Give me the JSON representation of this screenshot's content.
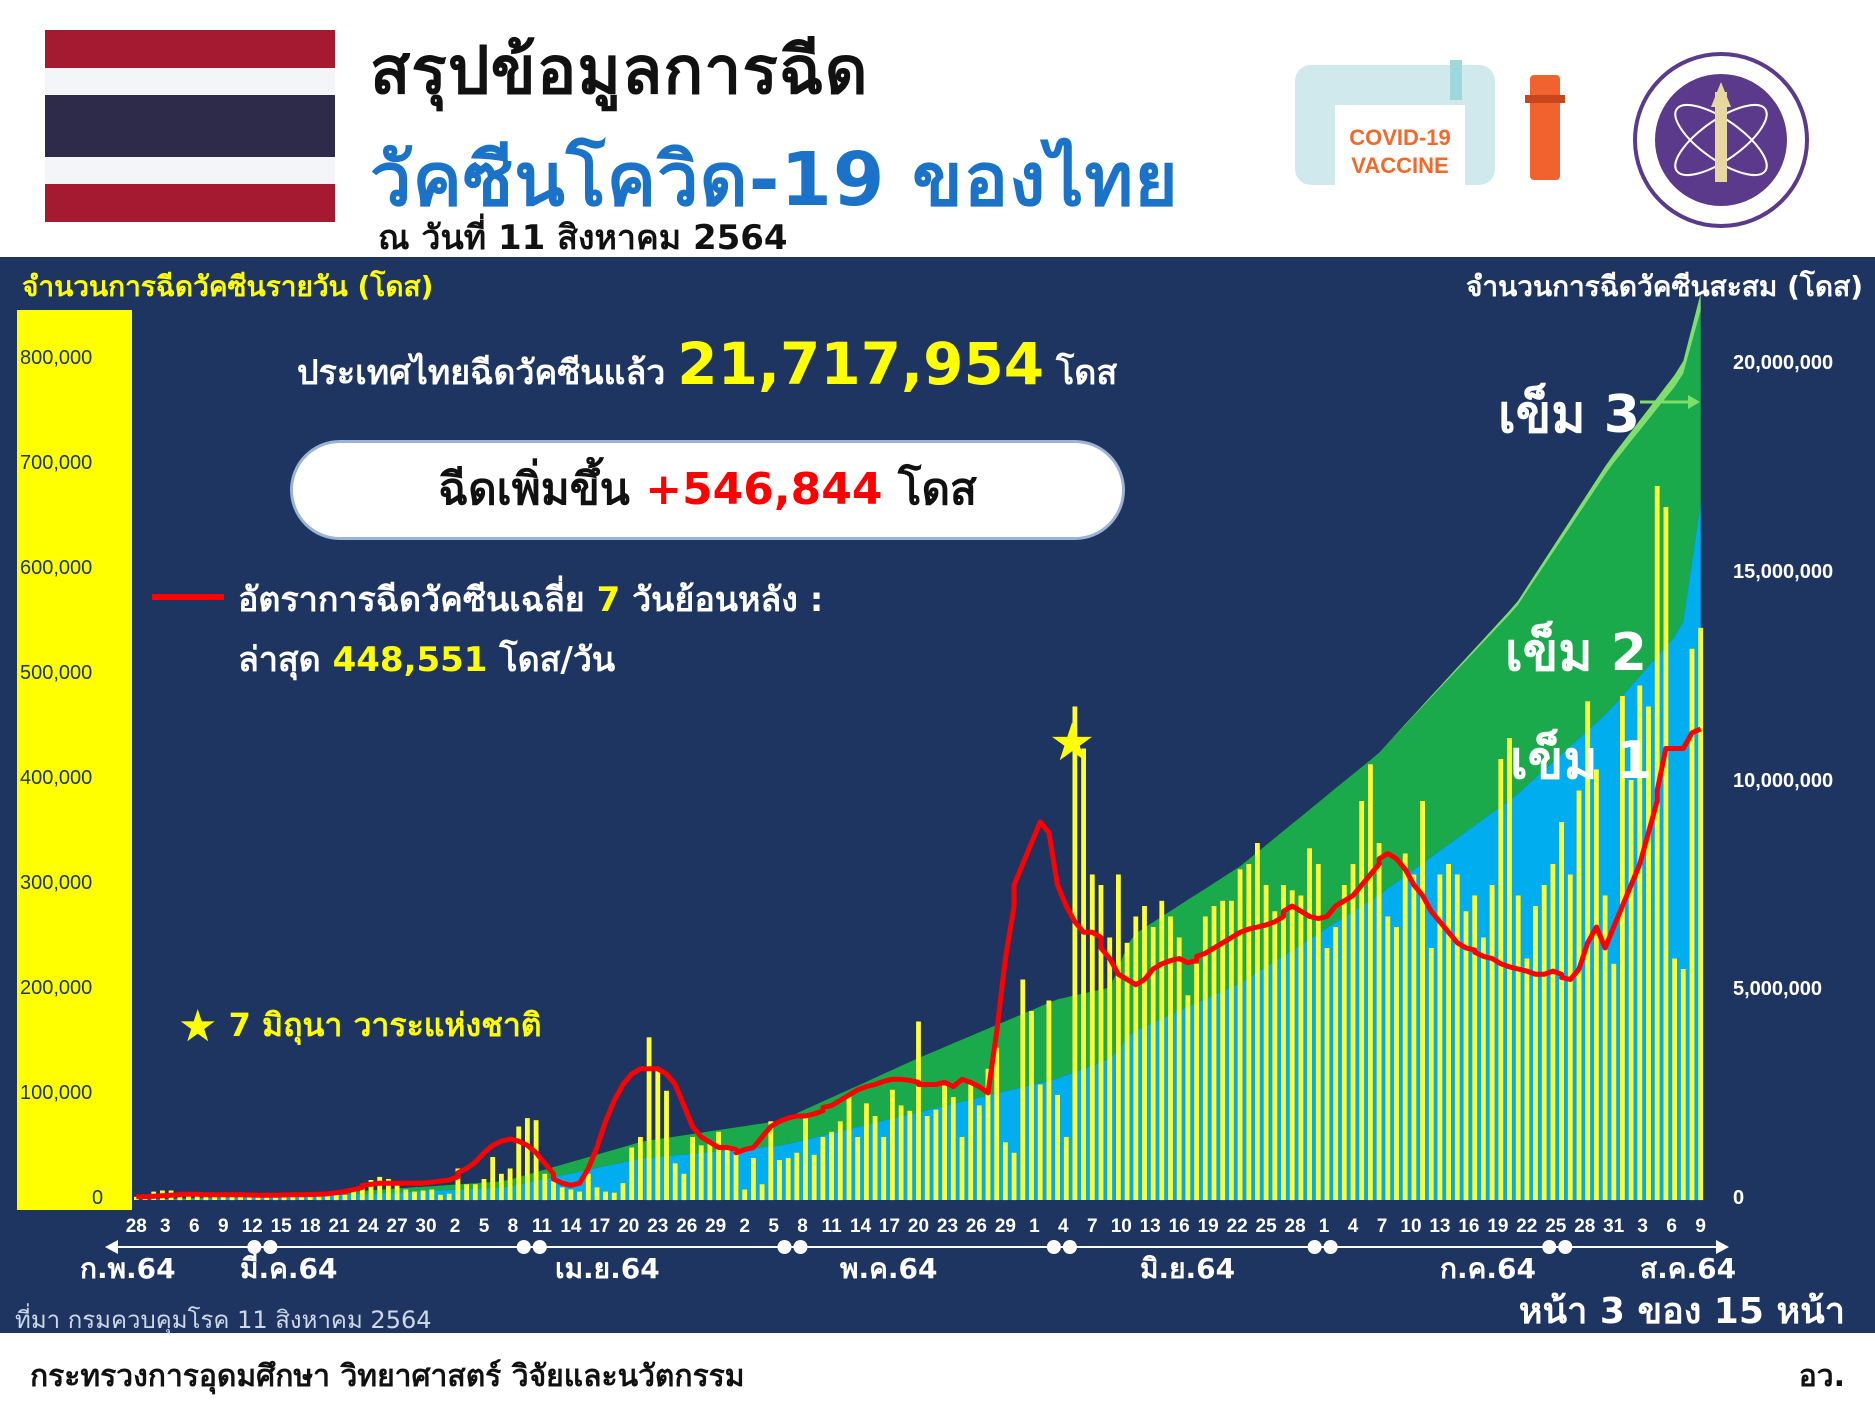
{
  "header": {
    "title_line1": "สรุปข้อมูลการฉีด",
    "title_line2": "วัคซีนโควิด-19 ของไทย",
    "as_of": "ณ วันที่ 11 สิงหาคม 2564",
    "vaccine_text_line1": "COVID-19",
    "vaccine_text_line2": "VACCINE",
    "flag_colors": [
      "#a51931",
      "#f4f5f8",
      "#2d2a4a",
      "#f4f5f8",
      "#a51931"
    ],
    "seal_color": "#5b3a8c"
  },
  "panel": {
    "left_axis_title": "จำนวนการฉีดวัคซีนรายวัน (โดส)",
    "right_axis_title": "จำนวนการฉีดวัคซีนสะสม (โดส)",
    "total_prefix": "ประเทศไทยฉีดวัคซีนแล้ว",
    "total_value": "21,717,954",
    "total_suffix": "โดส",
    "increase_prefix": "ฉีดเพิ่มขึ้น",
    "increase_value": "+546,844",
    "increase_suffix": "โดส",
    "avg_label_part1": "อัตราการฉีดวัคซีนเฉลี่ย",
    "avg_label_days": "7",
    "avg_label_part2": "วันย้อนหลัง :",
    "latest_prefix": "ล่าสุด",
    "latest_value": "448,551",
    "latest_suffix": "โดส/วัน",
    "star_note": "7 มิถุนา วาระแห่งชาติ",
    "dose3_label": "เข็ม 3",
    "dose2_label": "เข็ม 2",
    "dose1_label": "เข็ม 1",
    "source": "ที่มา กรมควบคุมโรค 11 สิงหาคม 2564",
    "page_info": "หน้า 3 ของ 15 หน้า",
    "colors": {
      "background": "#1f3561",
      "daily_bar": "#ffff33",
      "dose1_area": "#00aeef",
      "dose2_area": "#1aaa4b",
      "dose3_area": "#7ee06b",
      "avg_line": "#ff0000",
      "left_axis_band": "#ffff00"
    }
  },
  "footer": {
    "ministry": "กระทรวงการอุดมศึกษา วิทยาศาสตร์ วิจัยและนวัตกรรม",
    "abbr": "อว."
  },
  "chart_data": {
    "type": "bar",
    "x_tick_labels": [
      "28",
      "3",
      "6",
      "9",
      "12",
      "15",
      "18",
      "21",
      "24",
      "27",
      "30",
      "2",
      "5",
      "8",
      "11",
      "14",
      "17",
      "20",
      "23",
      "26",
      "29",
      "2",
      "5",
      "8",
      "11",
      "14",
      "17",
      "20",
      "23",
      "26",
      "29",
      "1",
      "4",
      "7",
      "10",
      "13",
      "16",
      "19",
      "22",
      "25",
      "28",
      "1",
      "4",
      "7",
      "10",
      "13",
      "16",
      "19",
      "22",
      "25",
      "28",
      "31",
      "3",
      "6",
      "9"
    ],
    "x_tick_day_index": [
      0,
      3,
      6,
      9,
      12,
      15,
      18,
      21,
      24,
      27,
      30,
      33,
      36,
      39,
      42,
      45,
      48,
      51,
      54,
      57,
      60,
      63,
      66,
      69,
      72,
      75,
      78,
      81,
      84,
      87,
      90,
      93,
      96,
      99,
      102,
      105,
      108,
      111,
      114,
      117,
      120,
      123,
      126,
      129,
      132,
      135,
      138,
      141,
      144,
      147,
      150,
      153,
      156,
      159,
      162
    ],
    "months": [
      {
        "label": "ก.พ.64",
        "day_index": 0
      },
      {
        "label": "มี.ค.64",
        "day_index": 15
      },
      {
        "label": "เม.ย.64",
        "day_index": 46
      },
      {
        "label": "พ.ค.64",
        "day_index": 76
      },
      {
        "label": "มิ.ย.64",
        "day_index": 107
      },
      {
        "label": "ก.ค.64",
        "day_index": 137
      },
      {
        "label": "ส.ค.64",
        "day_index": 164
      }
    ],
    "left_axis": {
      "ylim": [
        0,
        800000
      ],
      "ticks": [
        "0",
        "100,000",
        "200,000",
        "300,000",
        "400,000",
        "500,000",
        "600,000",
        "700,000",
        "800,000"
      ]
    },
    "right_axis": {
      "ylim": [
        0,
        20000000
      ],
      "ticks": [
        "0",
        "5,000,000",
        "10,000,000",
        "15,000,000",
        "20,000,000"
      ]
    },
    "daily_doses": [
      3000,
      2000,
      8000,
      9000,
      9000,
      5000,
      7000,
      6000,
      5000,
      4000,
      6000,
      5000,
      4000,
      4000,
      3000,
      4000,
      5000,
      5000,
      5000,
      6000,
      6000,
      5000,
      7000,
      5000,
      5000,
      9000,
      15000,
      19000,
      22000,
      20000,
      15000,
      10000,
      8000,
      9000,
      10000,
      5000,
      6000,
      30000,
      15000,
      15000,
      20000,
      41000,
      25000,
      30000,
      70000,
      78000,
      76000,
      25000,
      18000,
      12000,
      10000,
      8000,
      25000,
      12000,
      8000,
      7000,
      16000,
      50000,
      60000,
      155000,
      125000,
      104000,
      35000,
      25000,
      60000,
      52000,
      55000,
      65000,
      52000,
      48000,
      10000,
      40000,
      15000,
      75000,
      38000,
      40000,
      45000,
      80000,
      43000,
      60000,
      65000,
      75000,
      100000,
      60000,
      92000,
      80000,
      60000,
      105000,
      90000,
      85000,
      170000,
      80000,
      86000,
      112000,
      98000,
      60000,
      113000,
      90000,
      125000,
      145000,
      55000,
      45000,
      210000,
      180000,
      110000,
      190000,
      100000,
      60000,
      470000,
      430000,
      310000,
      300000,
      250000,
      310000,
      245000,
      270000,
      280000,
      260000,
      285000,
      270000,
      250000,
      195000,
      225000,
      270000,
      280000,
      285000,
      285000,
      315000,
      320000,
      340000,
      300000,
      275000,
      300000,
      295000,
      290000,
      335000,
      320000,
      240000,
      260000,
      300000,
      320000,
      380000,
      415000,
      340000,
      270000,
      260000,
      330000,
      310000,
      380000,
      240000,
      310000,
      320000,
      310000,
      275000,
      290000,
      250000,
      300000,
      420000,
      440000,
      290000,
      230000,
      280000,
      300000,
      320000,
      360000,
      310000,
      390000,
      475000,
      410000,
      290000,
      225000,
      480000,
      400000,
      490000,
      470000,
      680000,
      660000,
      230000,
      220000,
      525000,
      545000
    ],
    "avg_7day": [
      3000,
      3000,
      3500,
      4000,
      4500,
      5000,
      5500,
      5500,
      5500,
      5000,
      5000,
      5000,
      5000,
      5000,
      4800,
      4600,
      4500,
      4500,
      4500,
      4800,
      5000,
      5000,
      5200,
      5500,
      5800,
      7000,
      8000,
      10000,
      12000,
      14000,
      15000,
      16000,
      16000,
      16000,
      16000,
      16000,
      16000,
      17000,
      18000,
      19000,
      22000,
      26000,
      30000,
      36000,
      45000,
      52000,
      56000,
      58000,
      56000,
      52000,
      45000,
      35000,
      25000,
      20000,
      16000,
      14000,
      16000,
      30000,
      50000,
      75000,
      95000,
      110000,
      120000,
      125000,
      125000,
      125000,
      125000,
      120000,
      110000,
      90000,
      70000,
      60000,
      55000,
      50000,
      50000,
      48000,
      45000,
      48000,
      50000,
      60000,
      70000,
      75000,
      78000,
      80000,
      80000,
      82000,
      85000,
      88000,
      90000,
      95000,
      100000,
      105000,
      108000,
      110000,
      113000,
      115000,
      115000,
      114000,
      112000,
      110000,
      110000,
      110000,
      112000,
      108000,
      115000,
      112000,
      108000,
      102000,
      160000,
      230000,
      280000,
      300000,
      320000,
      340000,
      360000,
      350000,
      300000,
      280000,
      265000,
      255000,
      255000,
      250000,
      240000,
      230000,
      215000,
      210000,
      205000,
      210000,
      220000,
      225000,
      228000,
      230000,
      226000,
      228000,
      232000,
      235000,
      240000,
      245000,
      250000,
      255000,
      258000,
      260000,
      262000,
      265000,
      270000,
      275000,
      280000,
      275000,
      270000,
      268000,
      270000,
      280000,
      285000,
      290000,
      300000,
      310000,
      320000,
      325000,
      330000,
      325000,
      315000,
      300000,
      290000,
      275000,
      265000,
      255000,
      245000,
      240000,
      238000,
      236000,
      232000,
      230000,
      225000,
      222000,
      220000,
      218000,
      215000,
      215000,
      218000,
      215000,
      212000,
      210000,
      220000,
      245000,
      260000,
      240000,
      260000,
      280000,
      300000,
      320000,
      350000,
      380000,
      390000,
      430000,
      430000,
      430000,
      445000,
      448551
    ],
    "cumulative_dose1": [
      0,
      10000,
      20000,
      30000,
      40000,
      50000,
      60000,
      70000,
      75000,
      80000,
      85000,
      90000,
      95000,
      100000,
      105000,
      110000,
      115000,
      120000,
      125000,
      130000,
      135000,
      140000,
      145000,
      150000,
      155000,
      160000,
      175000,
      190000,
      210000,
      230000,
      245000,
      255000,
      265000,
      275000,
      285000,
      290000,
      295000,
      325000,
      340000,
      355000,
      375000,
      416000,
      441000,
      471000,
      541000,
      619000,
      695000,
      720000,
      738000,
      750000,
      760000,
      768000,
      793000,
      805000,
      813000,
      820000,
      836000,
      886000,
      946000,
      1100000,
      1225000,
      1329000,
      1360000,
      1380000,
      1430000,
      1470000,
      1510000,
      1560000,
      1600000,
      1630000,
      1638000,
      1665000,
      1675000,
      1730000,
      1758000,
      1785000,
      1815000,
      1870000,
      1900000,
      1940000,
      1985000,
      2035000,
      2100000,
      2140000,
      2200000,
      2250000,
      2290000,
      2360000,
      2420000,
      2475000,
      2580000,
      2630000,
      2680000,
      2750000,
      2810000,
      2845000,
      2910000,
      2960000,
      3030000,
      3110000,
      3140000,
      3165000,
      3280000,
      3380000,
      3440000,
      3545000,
      3600000,
      3630000,
      3900000,
      4130000,
      4300000,
      4460000,
      4590000,
      4750000,
      4870000,
      5000000,
      5130000,
      5250000,
      5380000,
      5500000,
      5610000,
      5700000,
      5800000,
      5920000,
      6040000,
      6160000,
      6280000,
      6410000,
      6540000,
      6680000,
      6800000,
      6910000,
      7030000,
      7150000,
      7260000,
      7390000,
      7520000,
      7610000,
      7710000,
      7820000,
      7940000,
      8090000,
      8250000,
      8380000,
      8480000,
      8580000,
      8700000,
      8820000,
      8960000,
      9050000,
      9170000,
      9290000,
      9400000,
      9500000,
      9600000,
      9690000,
      9800000,
      9960000,
      10120000,
      10220000,
      10300000,
      10400000,
      10510000,
      10620000,
      10750000,
      10860000,
      11000000,
      11170000,
      11320000,
      11420000,
      11500000,
      11660000,
      11800000,
      11970000,
      12140000,
      12380000,
      12620000,
      12700000,
      12780000,
      12950000,
      13100000,
      13300000,
      13500000,
      13700000,
      13900000,
      14100000,
      14300000,
      14500000,
      14700000,
      14900000,
      15100000,
      15400000,
      15700000,
      15950000,
      16200000,
      16450000,
      16700000
    ],
    "cumulative_dose2": [
      0,
      0,
      0,
      0,
      0,
      0,
      0,
      0,
      0,
      0,
      0,
      0,
      0,
      0,
      0,
      0,
      0,
      0,
      0,
      0,
      0,
      0,
      0,
      0,
      0,
      0,
      0,
      0,
      0,
      0,
      0,
      0,
      0,
      0,
      0,
      0,
      0,
      0,
      0,
      0,
      0,
      0,
      0,
      0,
      0,
      0,
      0,
      0,
      0,
      0,
      0,
      0,
      0,
      0,
      0,
      0,
      0,
      0,
      0,
      0,
      0,
      0,
      0,
      0,
      0,
      0,
      0,
      0,
      0,
      0,
      0,
      0,
      0,
      0,
      0,
      0,
      0,
      0,
      0,
      0,
      0,
      0,
      0,
      0,
      0,
      0,
      0,
      0,
      0,
      0,
      0,
      0,
      0,
      0,
      0,
      0,
      0,
      0,
      0,
      0,
      0,
      0,
      0,
      0,
      0,
      0,
      0,
      0,
      0,
      0,
      0,
      0,
      0,
      0,
      0,
      0,
      0,
      0,
      0,
      0,
      0,
      0,
      0,
      0,
      0,
      0,
      0,
      0,
      0,
      0,
      0,
      0,
      0,
      0,
      0,
      0,
      0,
      0,
      0,
      0,
      0,
      0,
      0,
      0,
      0,
      0,
      0,
      0,
      0,
      0,
      0,
      0,
      0,
      0,
      0,
      0,
      0,
      0,
      0,
      0,
      0,
      0,
      0,
      0,
      0,
      0,
      0,
      0,
      0,
      0,
      0,
      0,
      0,
      0,
      0,
      0,
      0,
      0,
      0,
      0,
      0,
      0,
      0,
      0,
      0,
      0,
      0,
      0,
      0,
      0,
      0,
      0,
      0,
      0,
      0,
      0,
      0,
      0,
      0,
      0,
      0
    ],
    "stacked_cumulative_anchors": {
      "description_unused": "",
      "day_index": [
        0,
        20,
        40,
        55,
        70,
        85,
        100,
        106,
        108,
        120,
        135,
        150,
        160,
        168,
        170
      ],
      "dose1_top": [
        0,
        100000,
        300000,
        1000000,
        1300000,
        2100000,
        2900000,
        3400000,
        4000000,
        5200000,
        7300000,
        9700000,
        11700000,
        13700000,
        16700000
      ],
      "dose2_top": [
        0,
        150000,
        450000,
        1400000,
        1900000,
        3400000,
        4800000,
        5100000,
        6300000,
        8000000,
        10700000,
        14200000,
        17500000,
        19700000,
        21300000
      ],
      "dose3_top": [
        0,
        150000,
        450000,
        1400000,
        1900000,
        3400000,
        4800000,
        5100000,
        6300000,
        8000000,
        10700000,
        14300000,
        17700000,
        20000000,
        21717954
      ]
    }
  }
}
